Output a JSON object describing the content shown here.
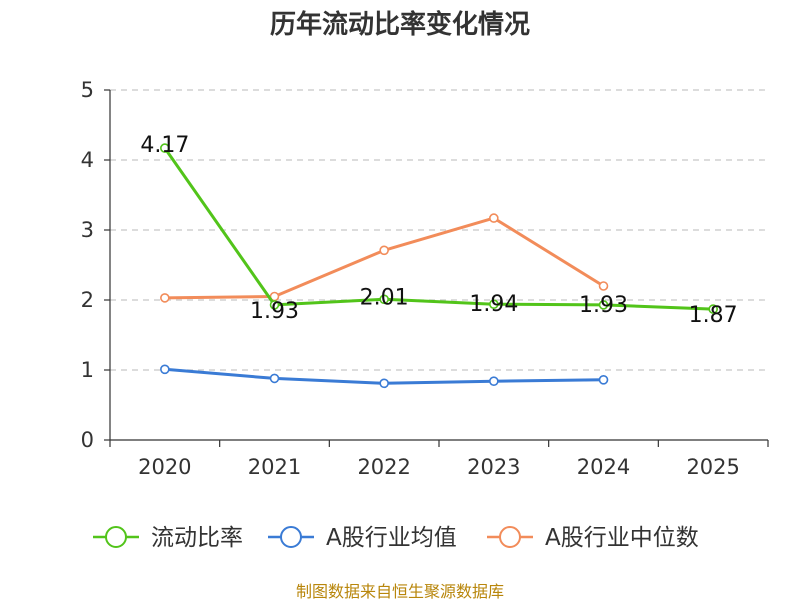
{
  "chart_data": {
    "type": "line",
    "title": "历年流动比率变化情况",
    "categories": [
      "2020",
      "2021",
      "2022",
      "2023",
      "2024",
      "2025"
    ],
    "ylim": [
      0,
      5
    ],
    "yticks": [
      "0",
      "1",
      "2",
      "3",
      "4",
      "5"
    ],
    "grid": true,
    "series": [
      {
        "name": "流动比率",
        "color": "#52c41a",
        "values": [
          4.17,
          1.93,
          2.01,
          1.94,
          1.93,
          1.87
        ],
        "labels": [
          "4.17",
          "1.93",
          "2.01",
          "1.94",
          "1.93",
          "1.87"
        ]
      },
      {
        "name": "A股行业均值",
        "color": "#3a7bd5",
        "values": [
          1.01,
          0.88,
          0.81,
          0.84,
          0.86,
          null
        ]
      },
      {
        "name": "A股行业中位数",
        "color": "#f28c5a",
        "values": [
          2.03,
          2.05,
          2.71,
          3.17,
          2.2,
          null
        ]
      }
    ],
    "legend_position": "bottom"
  },
  "source_text": "制图数据来自恒生聚源数据库"
}
